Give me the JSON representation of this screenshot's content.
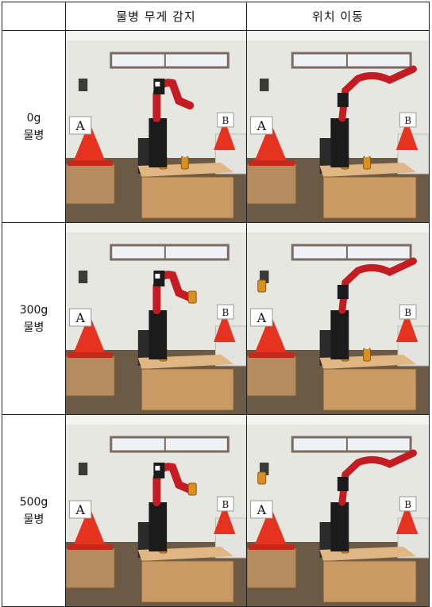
{
  "table": {
    "headers": [
      "",
      "물병 무게 감지",
      "위치 이동"
    ],
    "rows": [
      {
        "weight": "0g",
        "bottle": "물병"
      },
      {
        "weight": "300g",
        "bottle": "물병"
      },
      {
        "weight": "500g",
        "bottle": "물병"
      }
    ]
  },
  "photo_signs": {
    "left": "A",
    "right": "B"
  },
  "colors": {
    "wall": "#e7e7e2",
    "floor": "#6b5a45",
    "box_wood": "#c99a64",
    "cone": "#e5331f",
    "robot_red": "#c31c22",
    "robot_black": "#1b1b1b",
    "bottle": "#d9901f"
  }
}
